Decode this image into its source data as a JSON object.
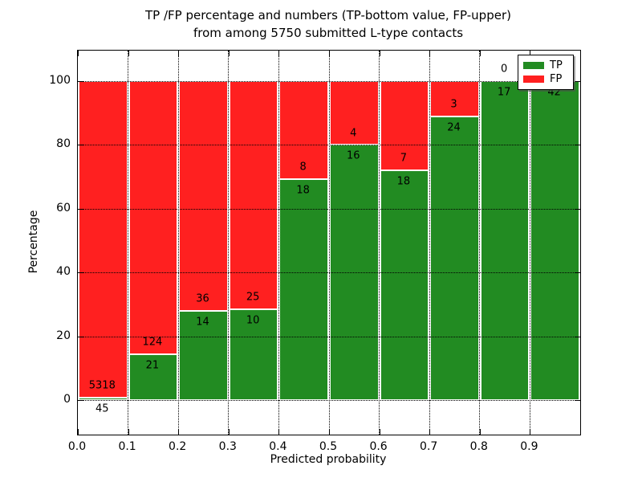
{
  "title": {
    "line1": "TP /FP percentage and numbers (TP-bottom value, FP-upper)",
    "line2": "from among 5750 submitted L-type contacts"
  },
  "axes": {
    "xlabel": "Predicted probability",
    "ylabel": "Percentage",
    "ytick_labels": [
      "0",
      "20",
      "40",
      "60",
      "80",
      "100"
    ],
    "ytick_values": [
      0,
      20,
      40,
      60,
      80,
      100
    ],
    "xtick_labels": [
      "0.0",
      "0.1",
      "0.2",
      "0.3",
      "0.4",
      "0.5",
      "0.6",
      "0.7",
      "0.8",
      "0.9"
    ],
    "xtick_values": [
      0.0,
      0.1,
      0.2,
      0.3,
      0.4,
      0.5,
      0.6,
      0.7,
      0.8,
      0.9
    ]
  },
  "legend": {
    "position": "upper right",
    "entries": [
      {
        "label": "TP",
        "color": "#228B22"
      },
      {
        "label": "FP",
        "color": "#FF2020"
      }
    ]
  },
  "chart_data": {
    "type": "bar",
    "stacked": true,
    "normalized_to_percent": true,
    "title": "TP /FP percentage and numbers (TP-bottom value, FP-upper) from among 5750 submitted L-type contacts",
    "xlabel": "Predicted probability",
    "ylabel": "Percentage",
    "bin_edges": [
      0.0,
      0.1,
      0.2,
      0.3,
      0.4,
      0.5,
      0.6,
      0.7,
      0.8,
      0.9,
      1.0
    ],
    "categories": [
      "0.0-0.1",
      "0.1-0.2",
      "0.2-0.3",
      "0.3-0.4",
      "0.4-0.5",
      "0.5-0.6",
      "0.6-0.7",
      "0.7-0.8",
      "0.8-0.9",
      "0.9-1.0"
    ],
    "series": [
      {
        "name": "TP",
        "color": "#228B22",
        "values": [
          45,
          21,
          14,
          10,
          18,
          16,
          18,
          24,
          17,
          42
        ]
      },
      {
        "name": "FP",
        "color": "#FF2020",
        "values": [
          5318,
          124,
          36,
          25,
          8,
          4,
          7,
          3,
          0,
          0
        ]
      }
    ],
    "total_contacts": 5750,
    "xlim": [
      0.0,
      1.0
    ],
    "ylim": [
      -10.8,
      109.6
    ],
    "grid": true,
    "grid_style": "dotted",
    "bar_edge_color": "#ffffff",
    "legend_position": "upper right",
    "fp_label_hidden_by_legend_bin_index": 9
  }
}
